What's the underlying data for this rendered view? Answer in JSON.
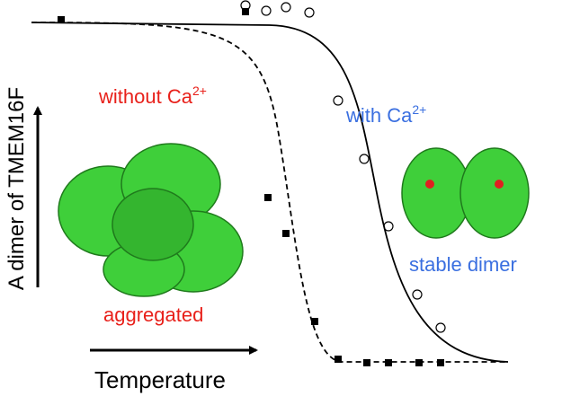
{
  "y_axis_label": "A dimer of TMEM16F",
  "x_axis_label": "Temperature",
  "without_label": {
    "text": "without Ca",
    "sup": "2+"
  },
  "with_label": {
    "text": "with Ca",
    "sup": "2+"
  },
  "stable_label": "stable dimer",
  "aggregated_label": "aggregated"
}
